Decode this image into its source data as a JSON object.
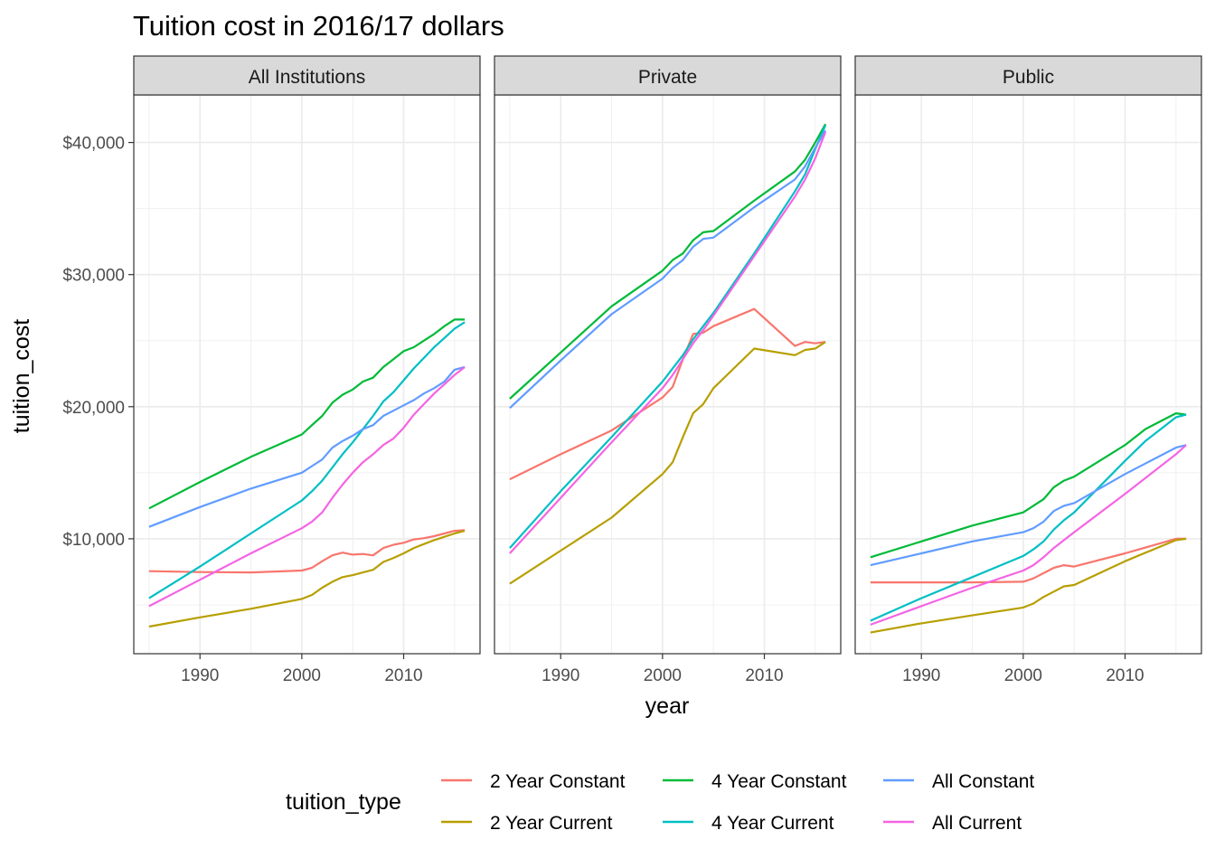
{
  "chart_data": {
    "type": "line",
    "title": "Tuition cost in 2016/17 dollars",
    "xlabel": "year",
    "ylabel": "tuition_cost",
    "xlim": [
      1983.5,
      2017.5
    ],
    "ylim": [
      1300,
      43600
    ],
    "x_ticks": [
      1990,
      2000,
      2010
    ],
    "x_tick_labels": [
      "1990",
      "2000",
      "2010"
    ],
    "y_ticks": [
      10000,
      20000,
      30000,
      40000
    ],
    "y_tick_labels": [
      "$10,000",
      "$20,000",
      "$30,000",
      "$40,000"
    ],
    "grid": true,
    "legend": {
      "title": "tuition_type",
      "position": "bottom",
      "entries": [
        {
          "label": "2 Year Constant",
          "color": "#F8766D"
        },
        {
          "label": "2 Year Current",
          "color": "#B79F00"
        },
        {
          "label": "4 Year Constant",
          "color": "#00BA38"
        },
        {
          "label": "4 Year Current",
          "color": "#00BFC4"
        },
        {
          "label": "All Constant",
          "color": "#619CFF"
        },
        {
          "label": "All Current",
          "color": "#F564E3"
        }
      ]
    },
    "facets": [
      {
        "name": "All Institutions",
        "series": [
          {
            "name": "2 Year Constant",
            "color": "#F8766D",
            "x": [
              1985,
              1990,
              1995,
              2000,
              2001,
              2002,
              2003,
              2004,
              2005,
              2006,
              2007,
              2008,
              2009,
              2010,
              2011,
              2012,
              2013,
              2014,
              2015,
              2016
            ],
            "y": [
              7550,
              7480,
              7450,
              7600,
              7800,
              8300,
              8750,
              8950,
              8800,
              8850,
              8750,
              9300,
              9550,
              9700,
              9950,
              10050,
              10200,
              10400,
              10600,
              10650
            ]
          },
          {
            "name": "2 Year Current",
            "color": "#B79F00",
            "x": [
              1985,
              1990,
              1995,
              2000,
              2001,
              2002,
              2003,
              2004,
              2005,
              2006,
              2007,
              2008,
              2009,
              2010,
              2011,
              2012,
              2013,
              2014,
              2015,
              2016
            ],
            "y": [
              3350,
              4050,
              4700,
              5450,
              5750,
              6300,
              6750,
              7100,
              7250,
              7450,
              7650,
              8250,
              8550,
              8900,
              9300,
              9600,
              9900,
              10150,
              10400,
              10600
            ]
          },
          {
            "name": "4 Year Constant",
            "color": "#00BA38",
            "x": [
              1985,
              1990,
              1995,
              2000,
              2001,
              2002,
              2003,
              2004,
              2005,
              2006,
              2007,
              2008,
              2009,
              2010,
              2011,
              2012,
              2013,
              2014,
              2015,
              2016
            ],
            "y": [
              12300,
              14300,
              16200,
              17900,
              18600,
              19300,
              20300,
              20900,
              21300,
              21900,
              22200,
              23000,
              23600,
              24200,
              24500,
              25000,
              25500,
              26100,
              26600,
              26600
            ]
          },
          {
            "name": "4 Year Current",
            "color": "#00BFC4",
            "x": [
              1985,
              1990,
              1995,
              2000,
              2001,
              2002,
              2003,
              2004,
              2005,
              2006,
              2007,
              2008,
              2009,
              2010,
              2011,
              2012,
              2013,
              2014,
              2015,
              2016
            ],
            "y": [
              5500,
              7900,
              10400,
              12900,
              13600,
              14400,
              15400,
              16400,
              17300,
              18300,
              19300,
              20400,
              21100,
              22000,
              22900,
              23700,
              24500,
              25200,
              25900,
              26400
            ]
          },
          {
            "name": "All Constant",
            "color": "#619CFF",
            "x": [
              1985,
              1990,
              1995,
              2000,
              2001,
              2002,
              2003,
              2004,
              2005,
              2006,
              2007,
              2008,
              2009,
              2010,
              2011,
              2012,
              2013,
              2014,
              2015,
              2016
            ],
            "y": [
              10900,
              12400,
              13800,
              15000,
              15500,
              16000,
              16900,
              17400,
              17800,
              18300,
              18600,
              19300,
              19700,
              20100,
              20500,
              21000,
              21400,
              21900,
              22800,
              23000
            ]
          },
          {
            "name": "All Current",
            "color": "#F564E3",
            "x": [
              1985,
              1990,
              1995,
              2000,
              2001,
              2002,
              2003,
              2004,
              2005,
              2006,
              2007,
              2008,
              2009,
              2010,
              2011,
              2012,
              2013,
              2014,
              2015,
              2016
            ],
            "y": [
              4900,
              6900,
              8900,
              10800,
              11300,
              12000,
              13100,
              14100,
              15000,
              15800,
              16400,
              17100,
              17600,
              18400,
              19400,
              20200,
              21000,
              21700,
              22400,
              23000
            ]
          }
        ]
      },
      {
        "name": "Private",
        "series": [
          {
            "name": "2 Year Constant",
            "color": "#F8766D",
            "x": [
              1985,
              1990,
              1995,
              2000,
              2001,
              2002,
              2003,
              2004,
              2005,
              2009,
              2013,
              2014,
              2015,
              2016
            ],
            "y": [
              14500,
              16400,
              18200,
              20700,
              21500,
              23600,
              25500,
              25600,
              26100,
              27400,
              24600,
              24900,
              24800,
              24900
            ]
          },
          {
            "name": "2 Year Current",
            "color": "#B79F00",
            "x": [
              1985,
              1990,
              1995,
              2000,
              2001,
              2002,
              2003,
              2004,
              2005,
              2009,
              2013,
              2014,
              2015,
              2016
            ],
            "y": [
              6600,
              9100,
              11600,
              14900,
              15800,
              17700,
              19500,
              20200,
              21400,
              24400,
              23900,
              24300,
              24400,
              24900
            ]
          },
          {
            "name": "4 Year Constant",
            "color": "#00BA38",
            "x": [
              1985,
              1990,
              1995,
              2000,
              2001,
              2002,
              2003,
              2004,
              2005,
              2009,
              2013,
              2014,
              2015,
              2016
            ],
            "y": [
              20600,
              24100,
              27600,
              30300,
              31100,
              31600,
              32600,
              33200,
              33300,
              35600,
              37800,
              38700,
              40000,
              41400
            ]
          },
          {
            "name": "4 Year Current",
            "color": "#00BFC4",
            "x": [
              1985,
              1990,
              1995,
              2000,
              2001,
              2002,
              2003,
              2004,
              2005,
              2009,
              2013,
              2014,
              2015,
              2016
            ],
            "y": [
              9300,
              13600,
              17700,
              21900,
              22900,
              23900,
              25100,
              26100,
              27100,
              31600,
              36300,
              37600,
              39500,
              41300
            ]
          },
          {
            "name": "All Constant",
            "color": "#619CFF",
            "x": [
              1985,
              1990,
              1995,
              2000,
              2001,
              2002,
              2003,
              2004,
              2005,
              2009,
              2013,
              2014,
              2015,
              2016
            ],
            "y": [
              19900,
              23500,
              27000,
              29700,
              30500,
              31100,
              32100,
              32700,
              32800,
              35100,
              37200,
              38200,
              39600,
              40900
            ]
          },
          {
            "name": "All Current",
            "color": "#F564E3",
            "x": [
              1985,
              1990,
              1995,
              2000,
              2001,
              2002,
              2003,
              2004,
              2005,
              2009,
              2013,
              2014,
              2015,
              2016
            ],
            "y": [
              8900,
              13100,
              17300,
              21400,
              22400,
              23600,
              24800,
              25800,
              26900,
              31400,
              35900,
              37200,
              38800,
              40800
            ]
          }
        ]
      },
      {
        "name": "Public",
        "series": [
          {
            "name": "2 Year Constant",
            "color": "#F8766D",
            "x": [
              1985,
              1990,
              1995,
              2000,
              2001,
              2002,
              2003,
              2004,
              2005,
              2010,
              2015,
              2016
            ],
            "y": [
              6700,
              6700,
              6700,
              6750,
              7000,
              7400,
              7800,
              8000,
              7900,
              8900,
              10000,
              10000
            ]
          },
          {
            "name": "2 Year Current",
            "color": "#B79F00",
            "x": [
              1985,
              1990,
              1995,
              2000,
              2001,
              2002,
              2003,
              2004,
              2005,
              2010,
              2015,
              2016
            ],
            "y": [
              2900,
              3600,
              4200,
              4800,
              5100,
              5600,
              6000,
              6400,
              6500,
              8300,
              9900,
              10000
            ]
          },
          {
            "name": "4 Year Constant",
            "color": "#00BA38",
            "x": [
              1985,
              1990,
              1995,
              2000,
              2001,
              2002,
              2003,
              2004,
              2005,
              2010,
              2012,
              2015,
              2016
            ],
            "y": [
              8600,
              9800,
              11000,
              12000,
              12500,
              13000,
              13900,
              14400,
              14700,
              17100,
              18300,
              19500,
              19400
            ]
          },
          {
            "name": "4 Year Current",
            "color": "#00BFC4",
            "x": [
              1985,
              1990,
              1995,
              2000,
              2001,
              2002,
              2003,
              2004,
              2005,
              2010,
              2012,
              2015,
              2016
            ],
            "y": [
              3800,
              5500,
              7100,
              8700,
              9200,
              9800,
              10700,
              11400,
              12000,
              15900,
              17400,
              19200,
              19400
            ]
          },
          {
            "name": "All Constant",
            "color": "#619CFF",
            "x": [
              1985,
              1990,
              1995,
              2000,
              2001,
              2002,
              2003,
              2004,
              2005,
              2010,
              2015,
              2016
            ],
            "y": [
              8000,
              8900,
              9800,
              10500,
              10800,
              11300,
              12100,
              12500,
              12700,
              14900,
              16900,
              17100
            ]
          },
          {
            "name": "All Current",
            "color": "#F564E3",
            "x": [
              1985,
              1990,
              1995,
              2000,
              2001,
              2002,
              2003,
              2004,
              2005,
              2010,
              2015,
              2016
            ],
            "y": [
              3500,
              4900,
              6300,
              7600,
              8000,
              8600,
              9300,
              9900,
              10500,
              13400,
              16400,
              17100
            ]
          }
        ]
      }
    ]
  }
}
